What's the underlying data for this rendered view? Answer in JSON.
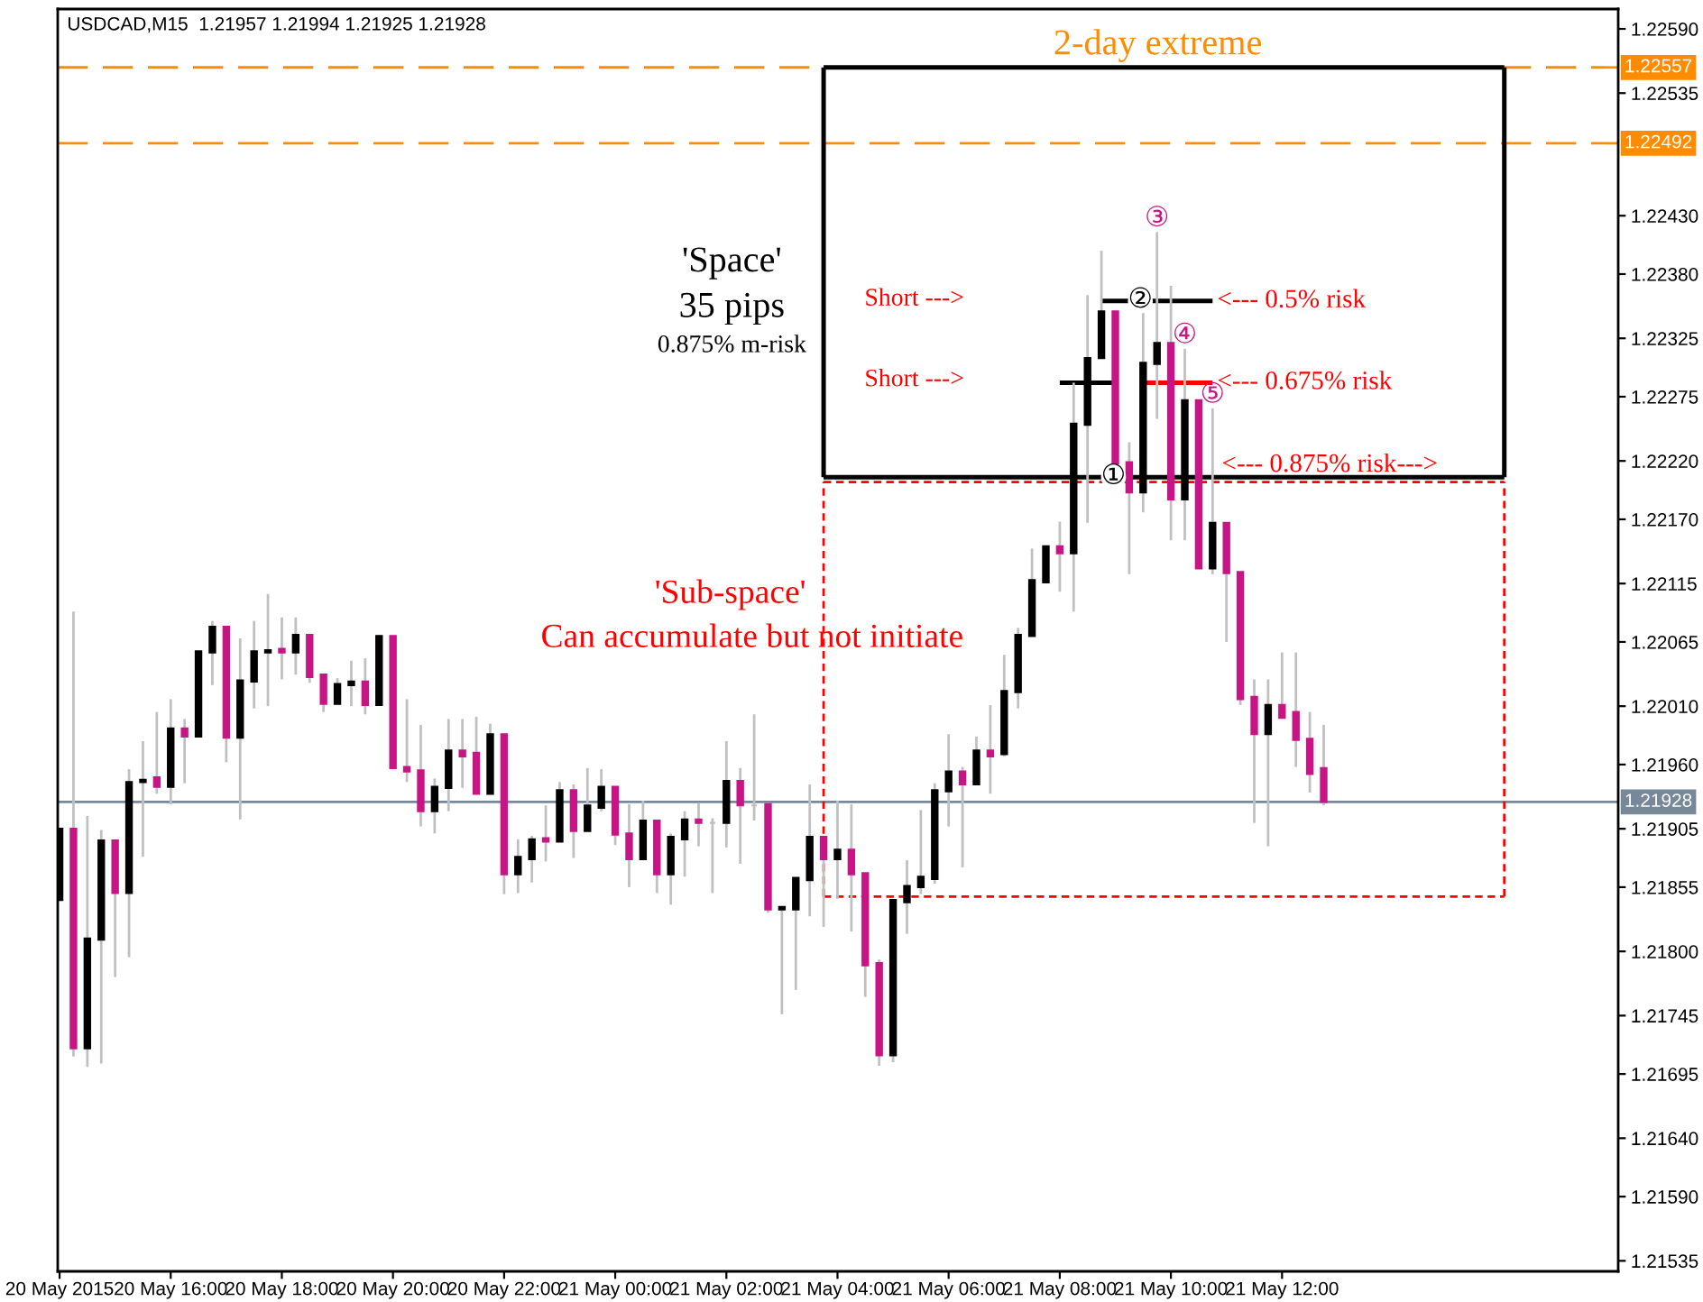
{
  "chart_data": {
    "type": "candlestick",
    "title": "USDCAD,M15  1.21957 1.21994 1.21925 1.21928",
    "x": [
      "2015-05-20T14:00",
      "2015-05-20T14:15",
      "2015-05-20T14:30",
      "2015-05-20T14:45",
      "2015-05-20T15:00",
      "2015-05-20T15:15",
      "2015-05-20T15:30",
      "2015-05-20T15:45",
      "2015-05-20T16:00",
      "2015-05-20T16:15",
      "2015-05-20T16:30",
      "2015-05-20T16:45",
      "2015-05-20T17:00",
      "2015-05-20T17:15",
      "2015-05-20T17:30",
      "2015-05-20T17:45",
      "2015-05-20T18:00",
      "2015-05-20T18:15",
      "2015-05-20T18:30",
      "2015-05-20T18:45",
      "2015-05-20T19:00",
      "2015-05-20T19:15",
      "2015-05-20T19:30",
      "2015-05-20T19:45",
      "2015-05-20T20:00",
      "2015-05-20T20:15",
      "2015-05-20T20:30",
      "2015-05-20T20:45",
      "2015-05-20T21:00",
      "2015-05-20T21:15",
      "2015-05-20T21:30",
      "2015-05-20T21:45",
      "2015-05-20T22:00",
      "2015-05-20T22:15",
      "2015-05-20T22:30",
      "2015-05-20T22:45",
      "2015-05-20T23:00",
      "2015-05-20T23:15",
      "2015-05-20T23:30",
      "2015-05-20T23:45",
      "2015-05-21T00:00",
      "2015-05-21T00:15",
      "2015-05-21T00:30",
      "2015-05-21T00:45",
      "2015-05-21T01:00",
      "2015-05-21T01:15",
      "2015-05-21T01:30",
      "2015-05-21T01:45",
      "2015-05-21T02:00",
      "2015-05-21T02:15",
      "2015-05-21T02:30",
      "2015-05-21T02:45",
      "2015-05-21T03:00",
      "2015-05-21T03:15",
      "2015-05-21T03:30",
      "2015-05-21T03:45",
      "2015-05-21T04:00",
      "2015-05-21T04:15",
      "2015-05-21T04:30",
      "2015-05-21T04:45",
      "2015-05-21T05:00",
      "2015-05-21T05:15",
      "2015-05-21T05:30",
      "2015-05-21T05:45",
      "2015-05-21T06:00",
      "2015-05-21T06:15",
      "2015-05-21T06:30",
      "2015-05-21T06:45",
      "2015-05-21T07:00",
      "2015-05-21T07:15",
      "2015-05-21T07:30",
      "2015-05-21T07:45",
      "2015-05-21T08:00",
      "2015-05-21T08:15",
      "2015-05-21T08:30",
      "2015-05-21T08:45",
      "2015-05-21T09:00",
      "2015-05-21T09:15",
      "2015-05-21T09:30",
      "2015-05-21T09:45",
      "2015-05-21T10:00",
      "2015-05-21T10:15",
      "2015-05-21T10:30",
      "2015-05-21T10:45",
      "2015-05-21T11:00",
      "2015-05-21T11:15",
      "2015-05-21T11:30",
      "2015-05-21T11:45",
      "2015-05-21T12:00",
      "2015-05-21T12:15",
      "2015-05-21T12:30",
      "2015-05-21T12:45"
    ],
    "ohlc": [
      [
        1.21844,
        1.21905,
        1.21844,
        1.21905
      ],
      [
        1.21905,
        1.22091,
        1.2171,
        1.21717
      ],
      [
        1.21717,
        1.21916,
        1.21701,
        1.21811
      ],
      [
        1.2181,
        1.21904,
        1.21704,
        1.21895
      ],
      [
        1.21895,
        1.21895,
        1.21778,
        1.2185
      ],
      [
        1.2185,
        1.21956,
        1.21795,
        1.21945
      ],
      [
        1.21945,
        1.2198,
        1.21881,
        1.21947
      ],
      [
        1.21949,
        1.22005,
        1.21935,
        1.21941
      ],
      [
        1.21941,
        1.22016,
        1.21926,
        1.21991
      ],
      [
        1.21991,
        1.21999,
        1.21944,
        1.21984
      ],
      [
        1.21984,
        1.22057,
        1.21984,
        1.22057
      ],
      [
        1.22056,
        1.22083,
        1.22028,
        1.22078
      ],
      [
        1.22078,
        1.22078,
        1.21962,
        1.21983
      ],
      [
        1.21983,
        1.22068,
        1.21913,
        1.22032
      ],
      [
        1.22031,
        1.22083,
        1.22008,
        1.22057
      ],
      [
        1.22056,
        1.22106,
        1.2201,
        1.22058
      ],
      [
        1.22059,
        1.22086,
        1.22033,
        1.22056
      ],
      [
        1.22056,
        1.22086,
        1.22037,
        1.22071
      ],
      [
        1.22071,
        1.22071,
        1.2203,
        1.22035
      ],
      [
        1.22037,
        1.22037,
        1.22005,
        1.22012
      ],
      [
        1.22012,
        1.22034,
        1.22012,
        1.22029
      ],
      [
        1.22028,
        1.22049,
        1.2201,
        1.22031
      ],
      [
        1.22031,
        1.22051,
        1.22003,
        1.22011
      ],
      [
        1.22011,
        1.22071,
        1.22011,
        1.2207
      ],
      [
        1.2207,
        1.2207,
        1.21957,
        1.21957
      ],
      [
        1.21958,
        1.22016,
        1.21945,
        1.21954
      ],
      [
        1.21955,
        1.21994,
        1.21907,
        1.2192
      ],
      [
        1.2192,
        1.21948,
        1.21901,
        1.21941
      ],
      [
        1.2194,
        1.21999,
        1.2192,
        1.21972
      ],
      [
        1.21972,
        1.21999,
        1.2194,
        1.21967
      ],
      [
        1.2197,
        1.22001,
        1.21935,
        1.21935
      ],
      [
        1.21935,
        1.21995,
        1.21935,
        1.21986
      ],
      [
        1.21986,
        1.21986,
        1.21849,
        1.21866
      ],
      [
        1.21866,
        1.21896,
        1.2185,
        1.21881
      ],
      [
        1.21879,
        1.21899,
        1.21859,
        1.21896
      ],
      [
        1.21897,
        1.21925,
        1.21877,
        1.21894
      ],
      [
        1.21894,
        1.21945,
        1.21894,
        1.21938
      ],
      [
        1.21938,
        1.21943,
        1.2188,
        1.21903
      ],
      [
        1.21903,
        1.21957,
        1.21903,
        1.21925
      ],
      [
        1.21923,
        1.21956,
        1.2192,
        1.21941
      ],
      [
        1.21941,
        1.21941,
        1.21891,
        1.219
      ],
      [
        1.21901,
        1.21926,
        1.21855,
        1.21879
      ],
      [
        1.21879,
        1.21929,
        1.21879,
        1.21912
      ],
      [
        1.21912,
        1.21912,
        1.2185,
        1.21866
      ],
      [
        1.21866,
        1.21901,
        1.2184,
        1.21898
      ],
      [
        1.21896,
        1.2192,
        1.21864,
        1.21913
      ],
      [
        1.21913,
        1.21927,
        1.2189,
        1.2191
      ],
      [
        1.2191,
        1.21914,
        1.2185,
        1.2191
      ],
      [
        1.2191,
        1.2198,
        1.21889,
        1.21946
      ],
      [
        1.21946,
        1.21957,
        1.21875,
        1.21925
      ],
      [
        1.21925,
        1.22003,
        1.21912,
        1.21925
      ],
      [
        1.21926,
        1.21926,
        1.21833,
        1.21836
      ],
      [
        1.21836,
        1.21838,
        1.21746,
        1.21838
      ],
      [
        1.21836,
        1.21863,
        1.21767,
        1.21863
      ],
      [
        1.21861,
        1.21943,
        1.2183,
        1.21898
      ],
      [
        1.21898,
        1.21898,
        1.21821,
        1.21879
      ],
      [
        1.21879,
        1.21929,
        1.21845,
        1.21887
      ],
      [
        1.21887,
        1.21926,
        1.21817,
        1.21866
      ],
      [
        1.21867,
        1.21867,
        1.21761,
        1.21788
      ],
      [
        1.2179,
        1.21793,
        1.21702,
        1.21711
      ],
      [
        1.21711,
        1.21844,
        1.21705,
        1.21844
      ],
      [
        1.21842,
        1.21878,
        1.21815,
        1.21856
      ],
      [
        1.21855,
        1.21921,
        1.21849,
        1.21864
      ],
      [
        1.21862,
        1.21944,
        1.21858,
        1.21938
      ],
      [
        1.21937,
        1.21986,
        1.21907,
        1.21954
      ],
      [
        1.21954,
        1.21958,
        1.21872,
        1.21943
      ],
      [
        1.21943,
        1.21984,
        1.21943,
        1.21972
      ],
      [
        1.21972,
        1.22011,
        1.21935,
        1.21967
      ],
      [
        1.21969,
        1.22054,
        1.21967,
        1.22023
      ],
      [
        1.22022,
        1.22077,
        1.22008,
        1.22071
      ],
      [
        1.2207,
        1.22145,
        1.2207,
        1.22118
      ],
      [
        1.22116,
        1.22147,
        1.22116,
        1.22147
      ],
      [
        1.22147,
        1.22168,
        1.22108,
        1.22141
      ],
      [
        1.22141,
        1.22287,
        1.22091,
        1.22252
      ],
      [
        1.22251,
        1.22362,
        1.22167,
        1.22308
      ],
      [
        1.22308,
        1.224,
        1.22308,
        1.22348
      ],
      [
        1.22348,
        1.22348,
        1.22218,
        1.22218
      ],
      [
        1.22219,
        1.22236,
        1.22123,
        1.22193
      ],
      [
        1.22193,
        1.22347,
        1.22176,
        1.22304
      ],
      [
        1.22303,
        1.22416,
        1.22256,
        1.22321
      ],
      [
        1.22321,
        1.2237,
        1.22152,
        1.22187
      ],
      [
        1.22187,
        1.22316,
        1.22152,
        1.22272
      ],
      [
        1.22272,
        1.22272,
        1.22128,
        1.22128
      ],
      [
        1.22128,
        1.22265,
        1.22123,
        1.22167
      ],
      [
        1.22167,
        1.22167,
        1.22065,
        1.22124
      ],
      [
        1.22125,
        1.22125,
        1.22011,
        1.22016
      ],
      [
        1.22018,
        1.22033,
        1.2191,
        1.21986
      ],
      [
        1.21986,
        1.22033,
        1.2189,
        1.22011
      ],
      [
        1.22011,
        1.22056,
        1.22,
        1.22
      ],
      [
        1.22005,
        1.22056,
        1.21958,
        1.21981
      ],
      [
        1.21982,
        1.22005,
        1.21936,
        1.21952
      ],
      [
        1.21957,
        1.21994,
        1.21925,
        1.21928
      ]
    ],
    "color": "#c0c0c0",
    "colors": [
      "#000000",
      "#c71585",
      "#000000",
      "#000000",
      "#c71585",
      "#000000",
      "#000000",
      "#c71585",
      "#000000",
      "#c71585",
      "#000000",
      "#000000",
      "#c71585",
      "#000000",
      "#000000",
      "#000000",
      "#c71585",
      "#000000",
      "#c71585",
      "#c71585",
      "#000000",
      "#000000",
      "#c71585",
      "#000000",
      "#c71585",
      "#c71585",
      "#c71585",
      "#000000",
      "#000000",
      "#c71585",
      "#c71585",
      "#000000",
      "#c71585",
      "#000000",
      "#000000",
      "#c71585",
      "#000000",
      "#c71585",
      "#000000",
      "#000000",
      "#c71585",
      "#c71585",
      "#000000",
      "#c71585",
      "#000000",
      "#000000",
      "#c71585",
      "#c0c0c0",
      "#000000",
      "#c71585",
      "#c0c0c0",
      "#c71585",
      "#000000",
      "#000000",
      "#000000",
      "#c71585",
      "#000000",
      "#c71585",
      "#c71585",
      "#c71585",
      "#000000",
      "#000000",
      "#000000",
      "#000000",
      "#000000",
      "#c71585",
      "#000000",
      "#c71585",
      "#000000",
      "#000000",
      "#000000",
      "#000000",
      "#c71585",
      "#000000",
      "#000000",
      "#000000",
      "#c71585",
      "#c71585",
      "#000000",
      "#000000",
      "#c71585",
      "#000000",
      "#c71585",
      "#000000",
      "#c71585",
      "#c71585",
      "#c71585",
      "#000000",
      "#c71585",
      "#c71585",
      "#c71585",
      "#c71585"
    ],
    "series": [
      {
        "type": "line",
        "x": [
          "2015-05-21T03:45",
          "2015-05-21T16:00"
        ],
        "values": [
          1.22557,
          1.22557
        ],
        "color": "#000000",
        "line_style": "solid"
      },
      {
        "type": "line",
        "x": [
          "2015-05-21T03:45",
          "2015-05-21T16:00"
        ],
        "values": [
          1.22206,
          1.22206
        ],
        "color": "#000000",
        "line_style": "solid"
      },
      {
        "type": "line",
        "x": [
          "2015-05-21T03:45",
          "2015-05-21T03:45"
        ],
        "values": [
          1.22206,
          1.22557
        ],
        "color": "#000000",
        "line_style": "solid"
      },
      {
        "type": "line",
        "x": [
          "2015-05-21T16:00",
          "2015-05-21T16:00"
        ],
        "values": [
          1.22206,
          1.22557
        ],
        "color": "#000000",
        "line_style": "solid"
      },
      {
        "type": "line",
        "x": [
          "2015-05-21T03:45",
          "2015-05-21T16:00"
        ],
        "values": [
          1.22202,
          1.22202
        ],
        "color": "#ff0000",
        "line_style": "dotted"
      },
      {
        "type": "line",
        "x": [
          "2015-05-21T03:45",
          "2015-05-21T16:00"
        ],
        "values": [
          1.21847,
          1.21847
        ],
        "color": "#ff0000",
        "line_style": "dotted"
      },
      {
        "type": "line",
        "x": [
          "2015-05-21T03:45",
          "2015-05-21T03:45"
        ],
        "values": [
          1.21847,
          1.22202
        ],
        "color": "#ff0000",
        "line_style": "dotted"
      },
      {
        "type": "line",
        "x": [
          "2015-05-21T16:00",
          "2015-05-21T16:00"
        ],
        "values": [
          1.21847,
          1.22202
        ],
        "color": "#ff0000",
        "line_style": "dotted"
      },
      {
        "type": "line",
        "x": [
          "2015-05-21T08:45",
          "2015-05-21T10:45"
        ],
        "values": [
          1.22357,
          1.22357
        ],
        "color": "#000000",
        "line_style": "solid"
      },
      {
        "type": "line",
        "x": [
          "2015-05-21T08:00",
          "2015-05-21T09:00"
        ],
        "values": [
          1.22287,
          1.22287
        ],
        "color": "#000000",
        "line_style": "solid"
      },
      {
        "type": "line",
        "x": [
          "2015-05-21T09:30",
          "2015-05-21T10:45"
        ],
        "values": [
          1.22287,
          1.22287
        ],
        "color": "#ff0000",
        "line_style": "solid"
      }
    ],
    "ref_lines": [
      {
        "axis": "y",
        "value": 1.22557,
        "label": "1.22557",
        "color": "#ff8c00",
        "line_style": "dashed"
      },
      {
        "axis": "y",
        "value": 1.22492,
        "label": "1.22492",
        "color": "#ff8c00",
        "line_style": "dashed"
      },
      {
        "axis": "y",
        "value": 1.21928,
        "label": "1.21928",
        "color": "#778899",
        "line_style": "solid"
      }
    ],
    "annotations": [
      "2-day extreme",
      "'Space'",
      "35 pips",
      "0.875% m-risk",
      "Short --->",
      "Short --->",
      {
        "text": "<--- 0.5% risk",
        "x": "2015-05-21T10:50",
        "y": 1.22357
      },
      {
        "text": "<--- 0.675% risk",
        "x": "2015-05-21T10:50",
        "y": 1.22287
      },
      {
        "text": "<--- 0.875% risk--->",
        "x": "2015-05-21T10:55",
        "y": 1.22206
      },
      "'Sub-space'",
      "Can accumulate but not initiate",
      {
        "text": "①",
        "x": "2015-05-21T08:58",
        "y": 1.22206
      },
      {
        "text": "②",
        "x": "2015-05-21T09:27",
        "y": 1.22357
      },
      {
        "text": "③",
        "x": "2015-05-21T09:45",
        "y": 1.22416
      },
      {
        "text": "④",
        "x": "2015-05-21T10:15",
        "y": 1.22316
      },
      {
        "text": "⑤",
        "x": "2015-05-21T10:45",
        "y": 1.22265
      }
    ],
    "xlim": [
      "2015-05-20T13:58",
      "2015-05-21T18:03"
    ],
    "xticks": [
      {
        "value": "2015-05-20T14:00",
        "label": "20 May 2015"
      },
      {
        "value": "2015-05-20T16:00",
        "label": "20 May 16:00"
      },
      {
        "value": "2015-05-20T18:00",
        "label": "20 May 18:00"
      },
      {
        "value": "2015-05-20T20:00",
        "label": "20 May 20:00"
      },
      {
        "value": "2015-05-20T22:00",
        "label": "20 May 22:00"
      },
      {
        "value": "2015-05-21T00:00",
        "label": "21 May 00:00"
      },
      {
        "value": "2015-05-21T02:00",
        "label": "21 May 02:00"
      },
      {
        "value": "2015-05-21T04:00",
        "label": "21 May 04:00"
      },
      {
        "value": "2015-05-21T06:00",
        "label": "21 May 06:00"
      },
      {
        "value": "2015-05-21T08:00",
        "label": "21 May 08:00"
      },
      {
        "value": "2015-05-21T10:00",
        "label": "21 May 10:00"
      },
      {
        "value": "2015-05-21T12:00",
        "label": "21 May 12:00"
      }
    ],
    "ylim": [
      1.21526,
      1.22607
    ],
    "yticks": [
      {
        "value": 1.2259,
        "label": "1.22590"
      },
      1.22535,
      {
        "value": 1.2243,
        "label": "1.22430"
      },
      {
        "value": 1.2238,
        "label": "1.22380"
      },
      1.22325,
      1.22275,
      {
        "value": 1.2222,
        "label": "1.22220"
      },
      {
        "value": 1.2217,
        "label": "1.22170"
      },
      1.22115,
      1.22065,
      {
        "value": 1.2201,
        "label": "1.22010"
      },
      {
        "value": 1.2196,
        "label": "1.21960"
      },
      1.21905,
      1.21855,
      {
        "value": 1.218,
        "label": "1.21800"
      },
      1.21745,
      1.21695,
      {
        "value": 1.2164,
        "label": "1.21640"
      },
      {
        "value": 1.2159,
        "label": "1.21590"
      },
      1.21535
    ]
  }
}
